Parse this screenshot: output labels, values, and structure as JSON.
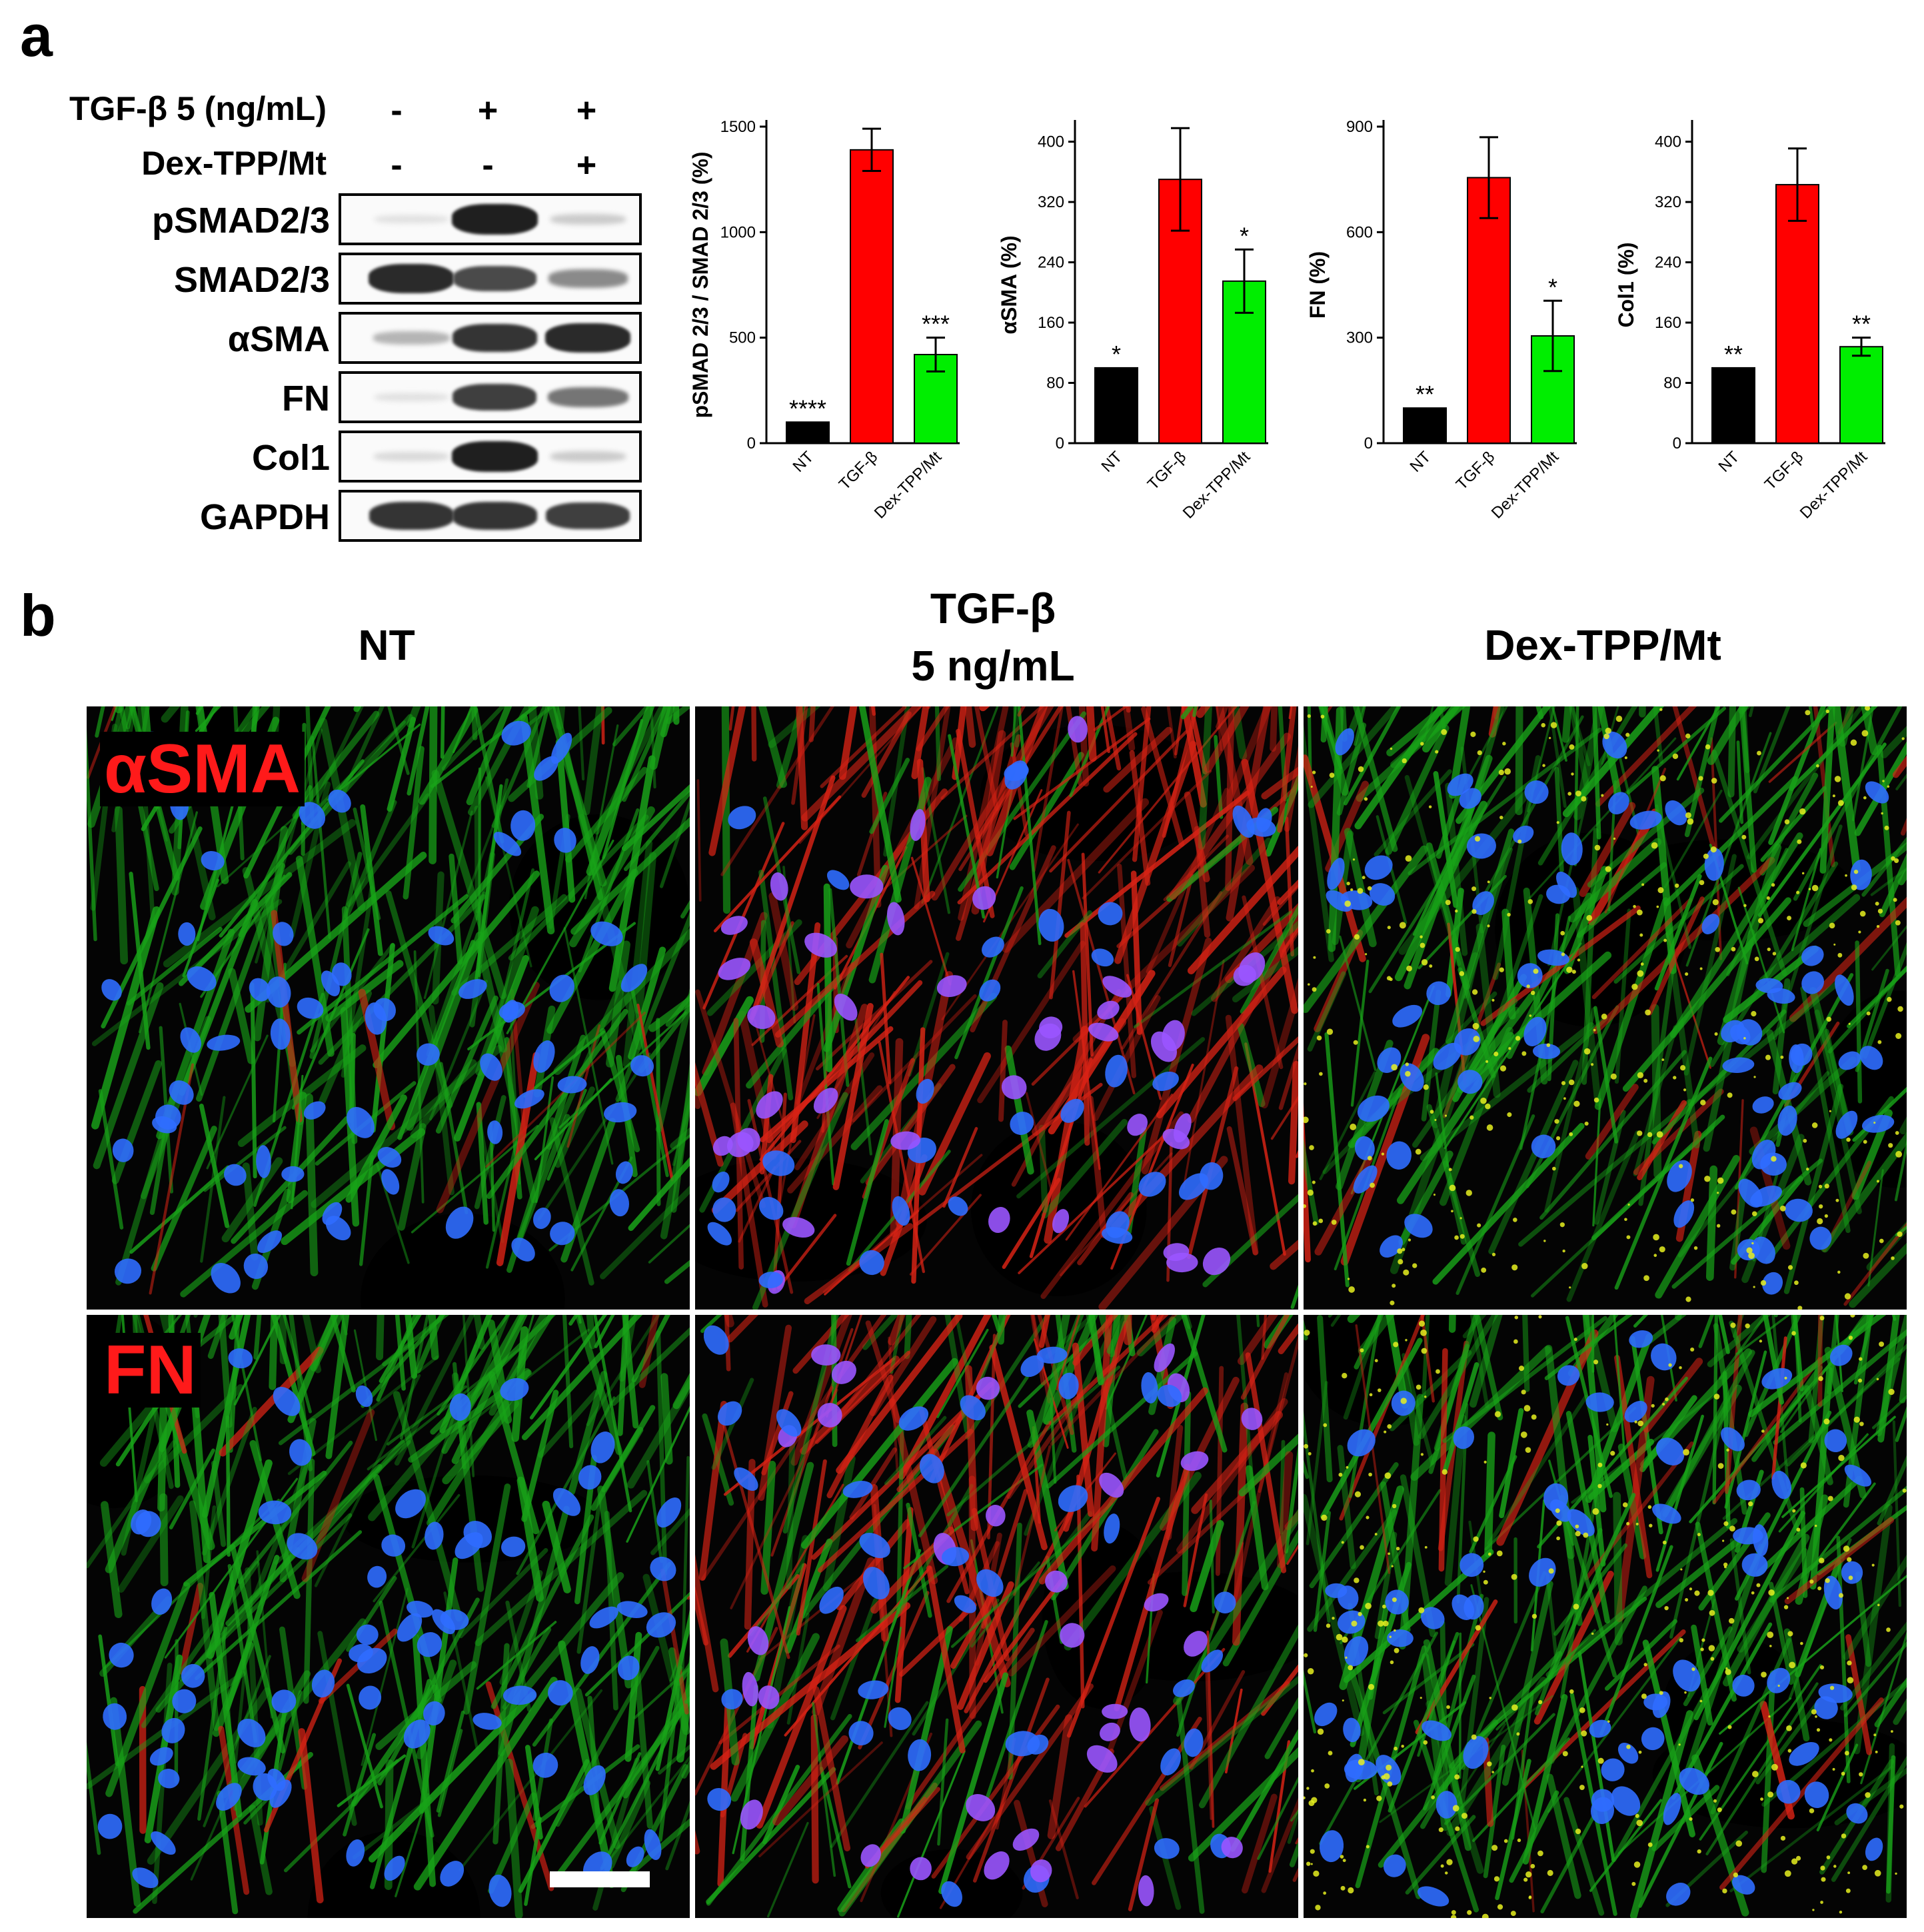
{
  "panel_a_letter": "a",
  "panel_b_letter": "b",
  "conditions": [
    {
      "label": "TGF-β 5 (ng/mL)",
      "signs": [
        "-",
        "+",
        "+"
      ]
    },
    {
      "label": "Dex-TPP/Mt",
      "signs": [
        "-",
        "-",
        "+"
      ]
    }
  ],
  "blots": [
    {
      "label": "pSMAD2/3",
      "intensity": [
        0.05,
        0.95,
        0.15
      ]
    },
    {
      "label": "SMAD2/3",
      "intensity": [
        0.9,
        0.75,
        0.45
      ]
    },
    {
      "label": "αSMA",
      "intensity": [
        0.25,
        0.85,
        0.9
      ]
    },
    {
      "label": "FN",
      "intensity": [
        0.05,
        0.8,
        0.55
      ]
    },
    {
      "label": "Col1",
      "intensity": [
        0.08,
        0.95,
        0.15
      ]
    },
    {
      "label": "GAPDH",
      "intensity": [
        0.85,
        0.85,
        0.8
      ]
    }
  ],
  "chart_data": [
    {
      "type": "bar",
      "ylabel": "pSMAD 2/3 / SMAD 2/3 (%)",
      "categories": [
        "NT",
        "TGF-β",
        "Dex-TPP/Mt"
      ],
      "values": [
        100,
        1390,
        420
      ],
      "errors": [
        0,
        100,
        80
      ],
      "significance": [
        "****",
        "",
        "***"
      ],
      "colors": [
        "#000000",
        "#ff0000",
        "#00ee00"
      ],
      "ylim": [
        0,
        1500
      ],
      "yticks": [
        0,
        500,
        1000,
        1500
      ]
    },
    {
      "type": "bar",
      "ylabel": "αSMA (%)",
      "categories": [
        "NT",
        "TGF-β",
        "Dex-TPP/Mt"
      ],
      "values": [
        100,
        350,
        215
      ],
      "errors": [
        0,
        68,
        42
      ],
      "significance": [
        "*",
        "",
        "*"
      ],
      "colors": [
        "#000000",
        "#ff0000",
        "#00ee00"
      ],
      "ylim": [
        0,
        420
      ],
      "yticks": [
        0,
        80,
        160,
        240,
        320,
        400
      ]
    },
    {
      "type": "bar",
      "ylabel": "FN (%)",
      "categories": [
        "NT",
        "TGF-β",
        "Dex-TPP/Mt"
      ],
      "values": [
        100,
        755,
        305
      ],
      "errors": [
        0,
        115,
        100
      ],
      "significance": [
        "**",
        "",
        "*"
      ],
      "colors": [
        "#000000",
        "#ff0000",
        "#00ee00"
      ],
      "ylim": [
        0,
        900
      ],
      "yticks": [
        0,
        300,
        600,
        900
      ]
    },
    {
      "type": "bar",
      "ylabel": "Col1 (%)",
      "categories": [
        "NT",
        "TGF-β",
        "Dex-TPP/Mt"
      ],
      "values": [
        100,
        343,
        128
      ],
      "errors": [
        0,
        48,
        12
      ],
      "significance": [
        "**",
        "",
        "**"
      ],
      "colors": [
        "#000000",
        "#ff0000",
        "#00ee00"
      ],
      "ylim": [
        0,
        420
      ],
      "yticks": [
        0,
        80,
        160,
        240,
        320,
        400
      ]
    }
  ],
  "micro_columns": [
    {
      "title": "NT",
      "title_line2": ""
    },
    {
      "title": "TGF-β",
      "title_line2": "5 ng/mL"
    },
    {
      "title": "Dex-TPP/Mt",
      "title_line2": ""
    }
  ],
  "micro_rows": [
    {
      "tag": "αSMA",
      "red_level": [
        0.05,
        0.75,
        0.12
      ]
    },
    {
      "tag": "FN",
      "red_level": [
        0.05,
        0.6,
        0.1
      ]
    }
  ],
  "colors": {
    "cytoskeleton": "#1ec21e",
    "marker": "#ff2a1a",
    "nuclei": "#2f6dff",
    "particles": "#e6f020"
  }
}
